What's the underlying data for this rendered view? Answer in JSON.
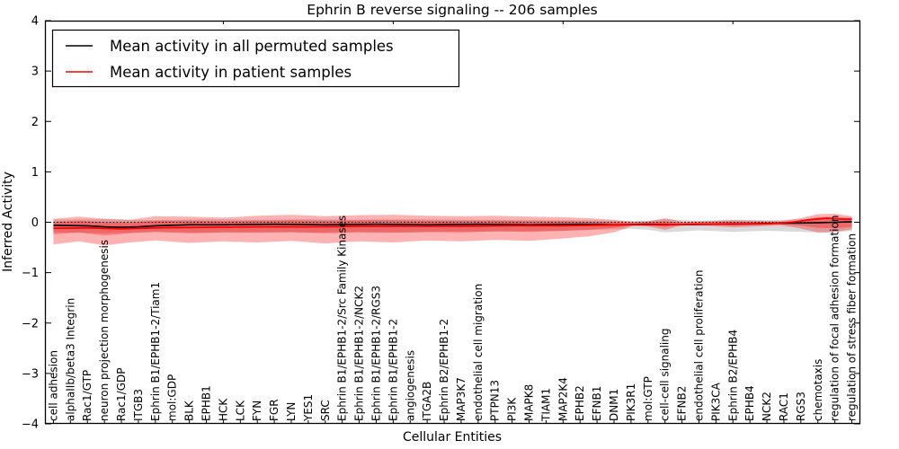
{
  "figure": {
    "title": "Ephrin B reverse signaling -- 206 samples",
    "xlabel": "Cellular Entities",
    "ylabel": "Inferred Activity"
  },
  "legend": {
    "entries": [
      {
        "label": "Mean activity in all permuted samples",
        "color": "#000000"
      },
      {
        "label": "Mean activity in patient samples",
        "color": "#ff0000"
      }
    ]
  },
  "chart_data": {
    "type": "line",
    "title": "Ephrin B reverse signaling -- 206 samples",
    "xlabel": "Cellular Entities",
    "ylabel": "Inferred Activity",
    "ylim": [
      -4,
      4
    ],
    "ytick_values": [
      -4,
      -3,
      -2,
      -1,
      0,
      1,
      2,
      3,
      4
    ],
    "ytick_labels": [
      "−4",
      "−3",
      "−2",
      "−1",
      "0",
      "1",
      "2",
      "3",
      "4"
    ],
    "grid": false,
    "legend_position": "upper left",
    "categories": [
      "cell adhesion",
      "alphaIIb/beta3 Integrin",
      "Rac1/GTP",
      "neuron projection morphogenesis",
      "Rac1/GDP",
      "ITGB3",
      "Ephrin B1/EPHB1-2/Tiam1",
      "mol:GDP",
      "BLK",
      "EPHB1",
      "HCK",
      "LCK",
      "FYN",
      "FGR",
      "LYN",
      "YES1",
      "SRC",
      "Ephrin B1/EPHB1-2/Src Family Kinases",
      "Ephrin B1/EPHB1-2/NCK2",
      "Ephrin B1/EPHB1-2/RGS3",
      "Ephrin B1/EPHB1-2",
      "angiogenesis",
      "ITGA2B",
      "Ephrin B2/EPHB1-2",
      "MAP3K7",
      "endothelial cell migration",
      "PTPN13",
      "PI3K",
      "MAPK8",
      "TIAM1",
      "MAP2K4",
      "EPHB2",
      "EFNB1",
      "DNM1",
      "PIK3R1",
      "mol:GTP",
      "cell-cell signaling",
      "EFNB2",
      "endothelial cell proliferation",
      "PIK3CA",
      "Ephrin B2/EPHB4",
      "EPHB4",
      "NCK2",
      "RAC1",
      "RGS3",
      "chemotaxis",
      "regulation of focal adhesion formation",
      "regulation of stress fiber formation"
    ],
    "series": [
      {
        "name": "zero reference line",
        "color": "#000000",
        "style": "dotted",
        "width": 1.1,
        "x": [
          0,
          47
        ],
        "y": [
          0,
          0
        ]
      },
      {
        "name": "Mean activity in all permuted samples",
        "color": "#000000",
        "style": "solid",
        "width": 1.6,
        "x": [
          0,
          2,
          3,
          4,
          5,
          6,
          8,
          10,
          13,
          16,
          19,
          22,
          25,
          28,
          31,
          33,
          35,
          37,
          39,
          41,
          43,
          45,
          46,
          47
        ],
        "y": [
          -0.06,
          -0.07,
          -0.09,
          -0.1,
          -0.09,
          -0.07,
          -0.05,
          -0.05,
          -0.04,
          -0.05,
          -0.04,
          -0.05,
          -0.04,
          -0.05,
          -0.04,
          -0.05,
          -0.04,
          -0.05,
          -0.04,
          -0.03,
          -0.02,
          -0.01,
          0.0,
          0.01
        ]
      },
      {
        "name": "Mean activity in patient samples",
        "color": "#ff0000",
        "style": "solid",
        "width": 1.8,
        "x": [
          0,
          2,
          4,
          6,
          9,
          12,
          15,
          18,
          21,
          24,
          27,
          30,
          32,
          34,
          36,
          38,
          40,
          42,
          43.5,
          44.5,
          45.5,
          46.5,
          47
        ],
        "y": [
          -0.12,
          -0.11,
          -0.13,
          -0.11,
          -0.1,
          -0.09,
          -0.09,
          -0.08,
          -0.08,
          -0.08,
          -0.07,
          -0.07,
          -0.06,
          -0.05,
          -0.05,
          -0.04,
          -0.04,
          -0.03,
          0.0,
          0.05,
          0.08,
          0.06,
          0.06
        ]
      }
    ],
    "bands": [
      {
        "name": "permuted samples range",
        "color": "#808080",
        "opacity": 0.3,
        "x": [
          0,
          3,
          6,
          9,
          12,
          15,
          18,
          21,
          24,
          27,
          30,
          32,
          34,
          35,
          36,
          38,
          40,
          42,
          44,
          45.5,
          47
        ],
        "top": [
          0.05,
          0.06,
          0.04,
          0.06,
          0.05,
          0.06,
          0.05,
          0.06,
          0.05,
          0.05,
          0.04,
          0.04,
          0.02,
          0.03,
          0.06,
          0.03,
          0.05,
          0.04,
          0.06,
          0.07,
          0.09
        ],
        "bottom": [
          -0.2,
          -0.22,
          -0.19,
          -0.21,
          -0.19,
          -0.21,
          -0.19,
          -0.2,
          -0.19,
          -0.18,
          -0.17,
          -0.15,
          -0.13,
          -0.15,
          -0.2,
          -0.16,
          -0.19,
          -0.17,
          -0.19,
          -0.21,
          -0.17
        ]
      },
      {
        "name": "patient samples outer range",
        "color": "#ff0000",
        "opacity": 0.3,
        "x": [
          0,
          1.5,
          3,
          4.5,
          6,
          8,
          10,
          12,
          14,
          16,
          18,
          20,
          22,
          24,
          26,
          28,
          30,
          31.5,
          33,
          34.2,
          35,
          36,
          37,
          38.5,
          40,
          41.5,
          42.8,
          43.8,
          45,
          46,
          47
        ],
        "top": [
          0.07,
          0.11,
          0.07,
          0.05,
          0.12,
          0.11,
          0.09,
          0.13,
          0.15,
          0.12,
          0.14,
          0.15,
          0.13,
          0.12,
          0.13,
          0.11,
          0.1,
          0.08,
          0.05,
          0.01,
          0.02,
          0.08,
          0.01,
          0.02,
          0.04,
          0.03,
          0.02,
          0.07,
          0.16,
          0.17,
          0.12
        ],
        "bottom": [
          -0.44,
          -0.38,
          -0.46,
          -0.4,
          -0.36,
          -0.41,
          -0.38,
          -0.4,
          -0.37,
          -0.42,
          -0.38,
          -0.4,
          -0.36,
          -0.38,
          -0.35,
          -0.37,
          -0.32,
          -0.28,
          -0.2,
          -0.06,
          -0.08,
          -0.15,
          -0.06,
          -0.07,
          -0.1,
          -0.08,
          -0.06,
          -0.11,
          -0.2,
          -0.19,
          -0.14
        ]
      },
      {
        "name": "patient samples inner range",
        "color": "#ff0000",
        "opacity": 0.3,
        "x": [
          0,
          1.5,
          3,
          4.5,
          6,
          8,
          10,
          12,
          14,
          16,
          18,
          20,
          22,
          24,
          26,
          28,
          30,
          31.5,
          33,
          34.2,
          35,
          36,
          37,
          38.5,
          40,
          41.5,
          42.8,
          43.8,
          45,
          46,
          47
        ],
        "top": [
          0.0,
          0.03,
          0.0,
          -0.01,
          0.03,
          0.03,
          0.02,
          0.03,
          0.04,
          0.03,
          0.04,
          0.04,
          0.03,
          0.03,
          0.03,
          0.02,
          0.02,
          0.01,
          0.0,
          -0.02,
          0.0,
          0.02,
          -0.01,
          0.0,
          0.01,
          0.0,
          0.0,
          0.03,
          0.1,
          0.11,
          0.08
        ],
        "bottom": [
          -0.24,
          -0.2,
          -0.26,
          -0.22,
          -0.19,
          -0.22,
          -0.2,
          -0.21,
          -0.19,
          -0.22,
          -0.2,
          -0.21,
          -0.19,
          -0.2,
          -0.18,
          -0.19,
          -0.17,
          -0.15,
          -0.11,
          -0.05,
          -0.05,
          -0.09,
          -0.04,
          -0.04,
          -0.06,
          -0.05,
          -0.04,
          -0.06,
          -0.11,
          -0.12,
          -0.09
        ]
      }
    ],
    "layout": {
      "plot_left": 50,
      "plot_top": 23,
      "plot_right": 957,
      "plot_bottom": 472,
      "top_tick_indices": [
        10,
        20,
        30,
        40
      ]
    }
  }
}
